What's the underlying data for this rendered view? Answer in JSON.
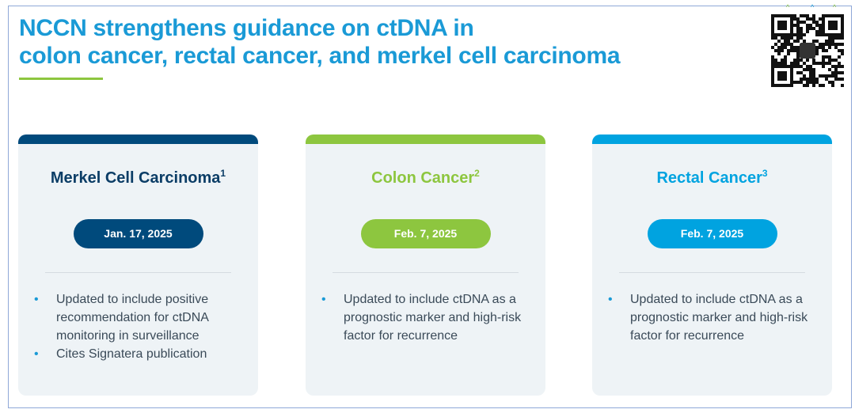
{
  "title_lines": [
    "NCCN strengthens guidance on ctDNA in",
    "colon cancer, rectal cancer, and merkel cell carcinoma"
  ],
  "colors": {
    "navy": "#004a7c",
    "green": "#8dc63f",
    "blue": "#00a3e0",
    "title": "#1a9ad6"
  },
  "cards": [
    {
      "title": "Merkel Cell Carcinoma",
      "sup": "1",
      "date": "Jan. 17, 2025",
      "bullets": [
        "Updated to include positive recommendation for ctDNA monitoring in surveillance",
        "Cites Signatera publication"
      ]
    },
    {
      "title": "Colon Cancer",
      "sup": "2",
      "date": "Feb. 7, 2025",
      "bullets": [
        "Updated to include ctDNA as a prognostic marker and high-risk factor for recurrence"
      ]
    },
    {
      "title": "Rectal Cancer",
      "sup": "3",
      "date": "Feb. 7, 2025",
      "bullets": [
        "Updated to include ctDNA as a prognostic marker and high-risk factor for recurrence"
      ]
    }
  ]
}
